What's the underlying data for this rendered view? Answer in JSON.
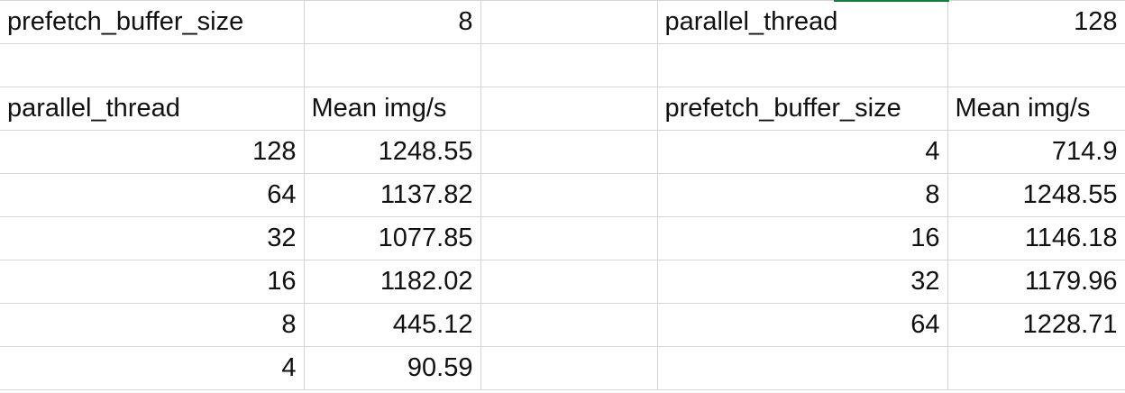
{
  "rows": [
    {
      "a": "prefetch_buffer_size",
      "b": "8",
      "c": "",
      "d": "parallel_thread",
      "e": "128"
    },
    {
      "a": "",
      "b": "",
      "c": "",
      "d": "",
      "e": ""
    },
    {
      "a": "parallel_thread",
      "b": "Mean img/s",
      "c": "",
      "d": "prefetch_buffer_size",
      "e": "Mean img/s"
    },
    {
      "a": "128",
      "b": "1248.55",
      "c": "",
      "d": "4",
      "e": "714.9"
    },
    {
      "a": "64",
      "b": "1137.82",
      "c": "",
      "d": "8",
      "e": "1248.55"
    },
    {
      "a": "32",
      "b": "1077.85",
      "c": "",
      "d": "16",
      "e": "1146.18"
    },
    {
      "a": "16",
      "b": "1182.02",
      "c": "",
      "d": "32",
      "e": "1179.96"
    },
    {
      "a": "8",
      "b": "445.12",
      "c": "",
      "d": "64",
      "e": "1228.71"
    },
    {
      "a": "4",
      "b": "90.59",
      "c": "",
      "d": "",
      "e": ""
    }
  ],
  "accent_color": "#1d7a3e",
  "gridline_color": "#d4d4d4"
}
